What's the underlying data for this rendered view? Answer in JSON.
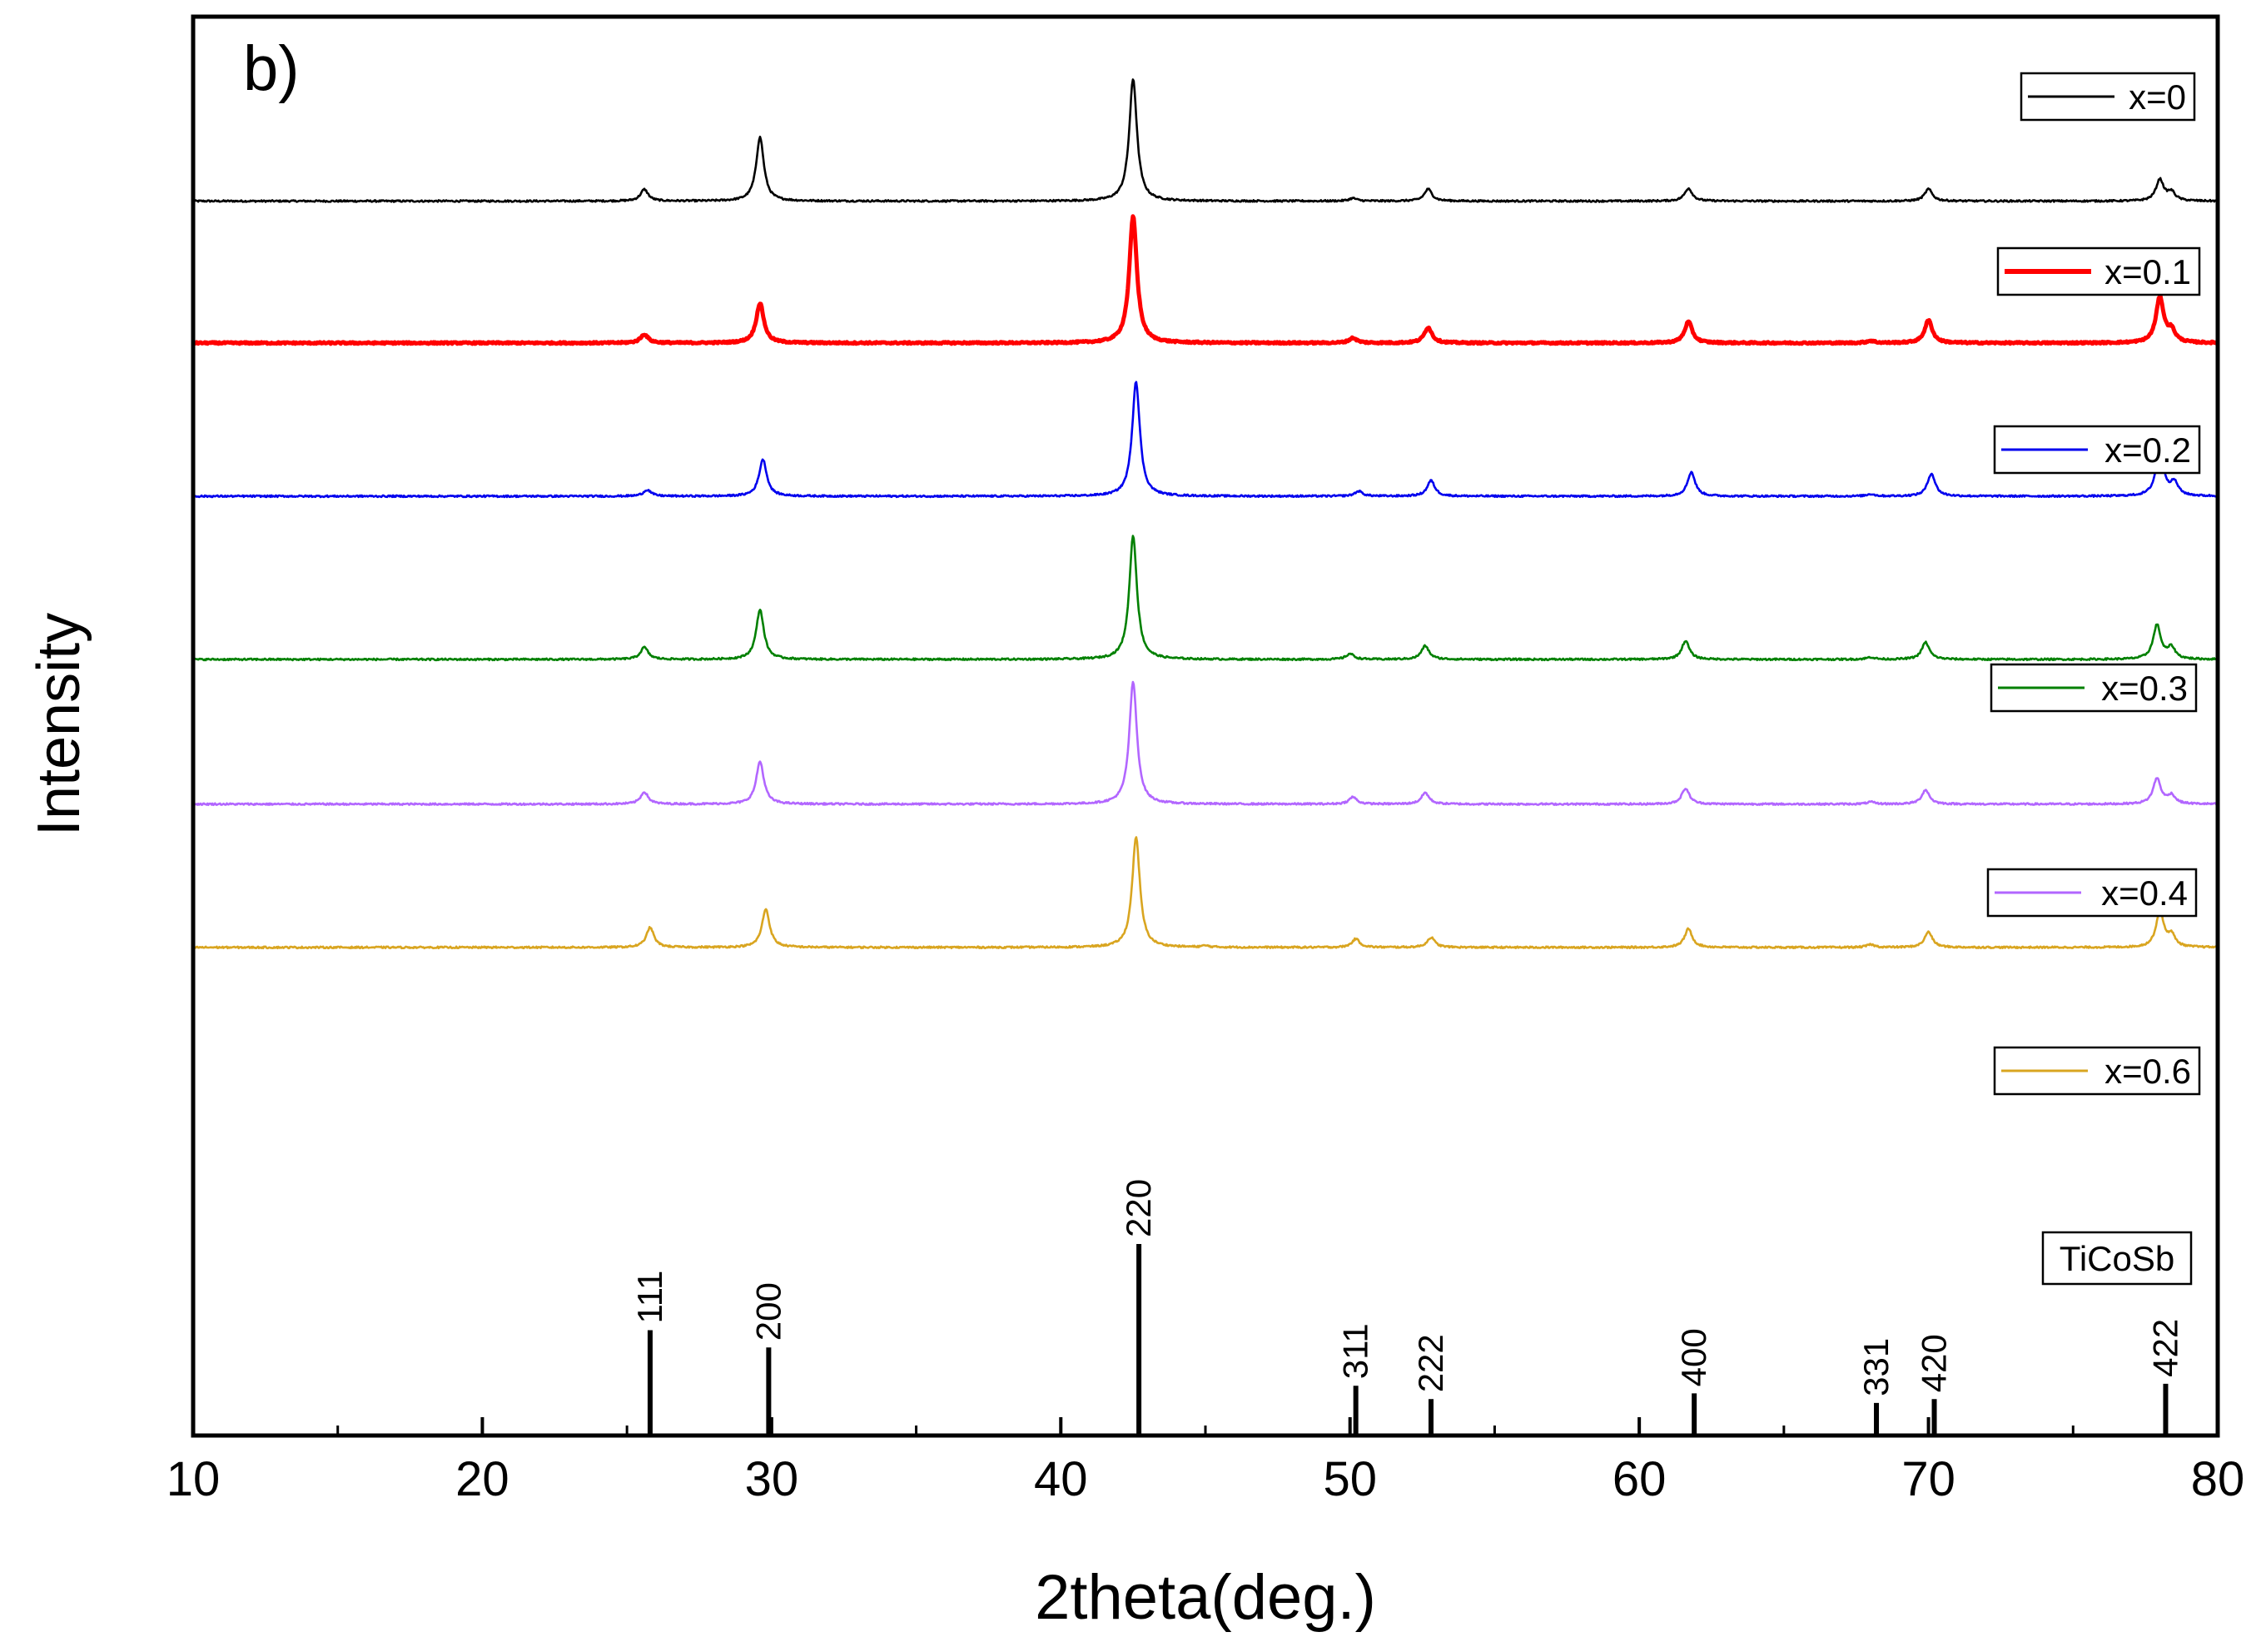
{
  "chart_data": {
    "type": "line",
    "panel_label": "b)",
    "xlabel": "2theta(deg.)",
    "ylabel": "Intensity",
    "xlim": [
      10,
      80
    ],
    "xticks": [
      10,
      20,
      30,
      40,
      50,
      60,
      70,
      80
    ],
    "grid": false,
    "legend": "right",
    "series": [
      {
        "name": "x=0",
        "color": "#000000",
        "thick": false,
        "baseline": 0.87,
        "peaks": [
          [
            25.6,
            0.0082
          ],
          [
            29.6,
            0.045
          ],
          [
            42.5,
            0.086
          ],
          [
            50.1,
            0.002
          ],
          [
            52.7,
            0.0085
          ],
          [
            61.7,
            0.009
          ],
          [
            70.0,
            0.0085
          ],
          [
            78.0,
            0.015
          ],
          [
            78.4,
            0.006
          ]
        ]
      },
      {
        "name": "x=0.1",
        "color": "#ff0000",
        "thick": true,
        "baseline": 0.77,
        "peaks": [
          [
            25.6,
            0.006
          ],
          [
            29.6,
            0.028
          ],
          [
            42.5,
            0.089
          ],
          [
            50.1,
            0.0035
          ],
          [
            52.7,
            0.011
          ],
          [
            61.7,
            0.015
          ],
          [
            68.0,
            0.0015
          ],
          [
            70.0,
            0.016
          ],
          [
            78.0,
            0.032
          ],
          [
            78.4,
            0.008
          ]
        ]
      },
      {
        "name": "x=0.2",
        "color": "#0000ee",
        "thick": false,
        "baseline": 0.662,
        "peaks": [
          [
            25.7,
            0.0045
          ],
          [
            29.7,
            0.026
          ],
          [
            42.6,
            0.081
          ],
          [
            50.3,
            0.0035
          ],
          [
            52.8,
            0.011
          ],
          [
            61.8,
            0.017
          ],
          [
            68.0,
            0.0015
          ],
          [
            70.1,
            0.016
          ],
          [
            78.0,
            0.033
          ],
          [
            78.5,
            0.009
          ]
        ]
      },
      {
        "name": "x=0.3",
        "color": "#008000",
        "thick": false,
        "baseline": 0.547,
        "peaks": [
          [
            25.6,
            0.0085
          ],
          [
            29.6,
            0.035
          ],
          [
            42.5,
            0.087
          ],
          [
            50.0,
            0.004
          ],
          [
            52.6,
            0.0095
          ],
          [
            61.6,
            0.013
          ],
          [
            68.0,
            0.0015
          ],
          [
            69.9,
            0.012
          ],
          [
            77.9,
            0.024
          ],
          [
            78.4,
            0.008
          ]
        ]
      },
      {
        "name": "x=0.4",
        "color": "#b266ff",
        "thick": false,
        "baseline": 0.445,
        "peaks": [
          [
            25.6,
            0.0085
          ],
          [
            29.6,
            0.03
          ],
          [
            42.5,
            0.086
          ],
          [
            50.1,
            0.005
          ],
          [
            52.6,
            0.008
          ],
          [
            61.6,
            0.011
          ],
          [
            68.0,
            0.0015
          ],
          [
            69.9,
            0.01
          ],
          [
            77.9,
            0.018
          ],
          [
            78.4,
            0.006
          ]
        ]
      },
      {
        "name": "x=0.6",
        "color": "#d9a520",
        "thick": false,
        "baseline": 0.344,
        "peaks": [
          [
            25.8,
            0.014
          ],
          [
            29.8,
            0.027
          ],
          [
            42.6,
            0.078
          ],
          [
            45.0,
            0.001
          ],
          [
            50.2,
            0.006
          ],
          [
            52.8,
            0.007
          ],
          [
            61.7,
            0.013
          ],
          [
            68.0,
            0.002
          ],
          [
            70.0,
            0.011
          ],
          [
            78.0,
            0.025
          ],
          [
            78.4,
            0.008
          ]
        ]
      }
    ],
    "reference": {
      "name": "TiCoSb",
      "lines": [
        {
          "x": 25.8,
          "h": 0.55,
          "label": "111"
        },
        {
          "x": 29.9,
          "h": 0.46,
          "label": "200"
        },
        {
          "x": 42.7,
          "h": 1.0,
          "label": "220"
        },
        {
          "x": 50.2,
          "h": 0.26,
          "label": "311"
        },
        {
          "x": 52.8,
          "h": 0.19,
          "label": "222"
        },
        {
          "x": 61.9,
          "h": 0.22,
          "label": "400"
        },
        {
          "x": 68.2,
          "h": 0.17,
          "label": "331"
        },
        {
          "x": 70.2,
          "h": 0.19,
          "label": "420"
        },
        {
          "x": 78.2,
          "h": 0.27,
          "label": "422"
        }
      ]
    }
  }
}
